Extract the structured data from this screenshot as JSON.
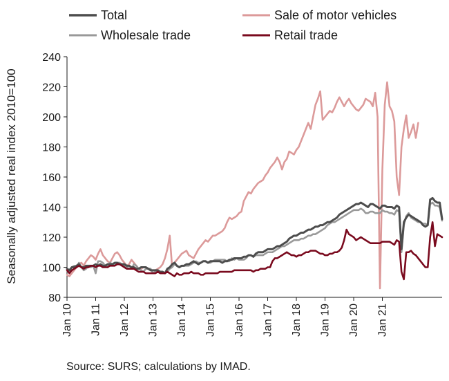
{
  "source_note": "Source: SURS; calculations by IMAD.",
  "colors": {
    "Total": "#4d4d4d",
    "Wholesale trade": "#999999",
    "Sale of motor vehicles": "#dc9a9a",
    "Retail trade": "#7a0a1e",
    "axis": "#1a1a1a"
  },
  "chart_data": {
    "type": "line",
    "title": "",
    "ylabel": "Seasonally adjusted real index 2010=100",
    "xlabel": "",
    "ylim": [
      80,
      240
    ],
    "yticks": [
      80,
      100,
      120,
      140,
      160,
      180,
      200,
      220,
      240
    ],
    "xticks": [
      "Jan 10",
      "Jan 11",
      "Jan 12",
      "Jan 13",
      "Jan 14",
      "Jan 15",
      "Jan 16",
      "Jan 17",
      "Jan 18",
      "Jan 19",
      "Jan 20",
      "Jan 21"
    ],
    "x_start": "Jan 10",
    "x_end": "Aug 21",
    "grid": false,
    "legend": [
      "Total",
      "Sale of motor vehicles",
      "Wholesale trade",
      "Retail trade"
    ],
    "legend_position": "top",
    "series": [
      {
        "name": "Total",
        "values": [
          99,
          98,
          100,
          100,
          101,
          102,
          100,
          100,
          101,
          101,
          101,
          101,
          102,
          101,
          102,
          101,
          101,
          102,
          102,
          102,
          103,
          103,
          102,
          102,
          102,
          101,
          101,
          100,
          100,
          99,
          99,
          100,
          100,
          100,
          99,
          98,
          98,
          98,
          98,
          97,
          97,
          96,
          99,
          100,
          102,
          103,
          101,
          100,
          101,
          101,
          102,
          102,
          103,
          104,
          103,
          102,
          103,
          104,
          104,
          103,
          104,
          104,
          104,
          104,
          104,
          103,
          104,
          104,
          105,
          105,
          106,
          106,
          106,
          106,
          107,
          107,
          108,
          108,
          107,
          109,
          110,
          110,
          110,
          111,
          112,
          112,
          112,
          113,
          114,
          114,
          115,
          116,
          117,
          119,
          120,
          121,
          121,
          122,
          123,
          123,
          124,
          125,
          125,
          126,
          127,
          127,
          128,
          128,
          129,
          130,
          130,
          131,
          132,
          133,
          135,
          136,
          137,
          138,
          139,
          140,
          141,
          142,
          142,
          143,
          142,
          141,
          140,
          142,
          142,
          141,
          140,
          139,
          141,
          141,
          140,
          140,
          140,
          139,
          141,
          140,
          112,
          130,
          133,
          135,
          134,
          133,
          132,
          131,
          130,
          128,
          127,
          128,
          145,
          146,
          144,
          143,
          143,
          132
        ]
      },
      {
        "name": "Sale of motor vehicles",
        "values": [
          95,
          94,
          96,
          98,
          100,
          102,
          103,
          101,
          104,
          106,
          108,
          107,
          105,
          109,
          112,
          108,
          106,
          104,
          103,
          106,
          109,
          110,
          108,
          105,
          103,
          101,
          102,
          105,
          103,
          101,
          99,
          99,
          100,
          100,
          99,
          98,
          98,
          98,
          99,
          100,
          102,
          106,
          112,
          121,
          100,
          103,
          105,
          107,
          109,
          110,
          111,
          108,
          107,
          106,
          109,
          112,
          114,
          116,
          118,
          117,
          119,
          121,
          121,
          122,
          123,
          124,
          126,
          130,
          133,
          132,
          133,
          134,
          136,
          137,
          144,
          147,
          150,
          149,
          152,
          154,
          156,
          157,
          158,
          161,
          163,
          166,
          168,
          170,
          173,
          170,
          165,
          170,
          172,
          177,
          176,
          175,
          178,
          180,
          184,
          188,
          192,
          196,
          192,
          200,
          208,
          212,
          217,
          198,
          200,
          202,
          204,
          203,
          206,
          210,
          213,
          210,
          207,
          210,
          212,
          209,
          207,
          205,
          204,
          206,
          208,
          212,
          211,
          210,
          207,
          216,
          200,
          86,
          165,
          208,
          223,
          207,
          204,
          197,
          160,
          148,
          180,
          192,
          201,
          186,
          190,
          195,
          186,
          196
        ]
      },
      {
        "name": "Wholesale trade",
        "values": [
          99,
          97,
          100,
          101,
          100,
          103,
          100,
          98,
          99,
          101,
          100,
          101,
          96,
          104,
          104,
          103,
          101,
          100,
          103,
          102,
          102,
          103,
          103,
          102,
          101,
          100,
          99,
          99,
          102,
          101,
          99,
          98,
          97,
          99,
          99,
          99,
          96,
          97,
          98,
          97,
          97,
          96,
          97,
          99,
          100,
          102,
          101,
          100,
          101,
          101,
          101,
          101,
          102,
          103,
          104,
          103,
          103,
          104,
          104,
          103,
          103,
          104,
          105,
          105,
          105,
          105,
          105,
          104,
          104,
          106,
          105,
          106,
          105,
          105,
          105,
          106,
          108,
          108,
          107,
          108,
          108,
          108,
          108,
          109,
          110,
          110,
          110,
          111,
          112,
          113,
          114,
          114,
          115,
          116,
          117,
          118,
          118,
          118,
          119,
          119,
          120,
          121,
          121,
          122,
          122,
          123,
          124,
          125,
          126,
          128,
          129,
          130,
          130,
          131,
          132,
          133,
          134,
          135,
          136,
          137,
          138,
          138,
          138,
          139,
          138,
          136,
          136,
          137,
          137,
          136,
          136,
          136,
          138,
          137,
          137,
          136,
          136,
          135,
          138,
          137,
          110,
          128,
          134,
          136,
          133,
          132,
          131,
          130,
          130,
          129,
          129,
          128,
          142,
          143,
          141,
          141,
          140,
          131
        ]
      },
      {
        "name": "Retail trade",
        "values": [
          98,
          96,
          98,
          99,
          100,
          101,
          100,
          99,
          100,
          100,
          101,
          101,
          100,
          101,
          101,
          100,
          100,
          100,
          101,
          101,
          101,
          102,
          102,
          101,
          100,
          99,
          99,
          99,
          99,
          98,
          97,
          97,
          97,
          96,
          96,
          96,
          96,
          96,
          97,
          96,
          96,
          96,
          97,
          96,
          95,
          94,
          96,
          95,
          95,
          96,
          96,
          96,
          97,
          96,
          96,
          96,
          95,
          95,
          96,
          96,
          96,
          96,
          96,
          96,
          97,
          97,
          97,
          97,
          97,
          97,
          98,
          98,
          98,
          98,
          98,
          98,
          98,
          98,
          97,
          98,
          98,
          99,
          99,
          99,
          100,
          100,
          104,
          106,
          106,
          107,
          108,
          109,
          110,
          109,
          108,
          108,
          107,
          108,
          108,
          109,
          110,
          110,
          111,
          111,
          111,
          110,
          109,
          109,
          108,
          108,
          109,
          109,
          110,
          110,
          111,
          113,
          118,
          125,
          122,
          121,
          120,
          118,
          119,
          120,
          119,
          118,
          117,
          116,
          116,
          116,
          116,
          116,
          117,
          117,
          117,
          117,
          116,
          115,
          118,
          117,
          97,
          92,
          110,
          110,
          111,
          109,
          108,
          106,
          104,
          102,
          100,
          100,
          120,
          130,
          114,
          122,
          121,
          120
        ]
      }
    ]
  }
}
